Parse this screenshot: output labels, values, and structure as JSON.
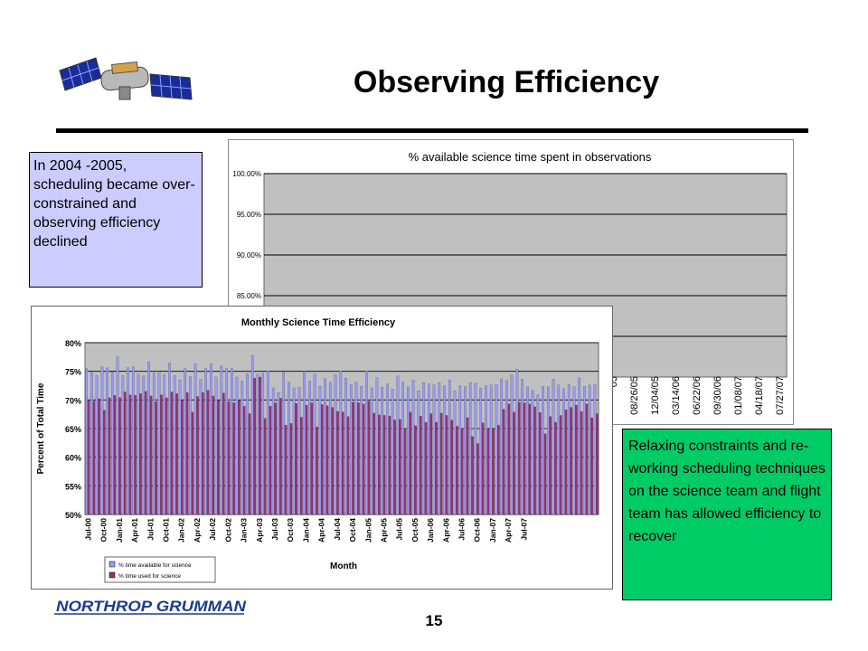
{
  "slide": {
    "title": "Observing Efficiency",
    "page_number": "15",
    "logo_text": "NORTHROP GRUMMAN"
  },
  "notes": {
    "left": "In 2004 -2005, scheduling became over-constrained and observing efficiency declined",
    "right": "Relaxing constraints and re-working scheduling techniques on the science team and flight team has allowed efficiency to recover"
  },
  "colors": {
    "note_left_bg": "#ccccff",
    "note_right_bg": "#00cc66",
    "plot_bg": "#c0c0c0",
    "scatter_point": "#1f1f99",
    "avail_bar": "#9999ff",
    "used_bar": "#993366"
  },
  "chart_data": [
    {
      "type": "scatter",
      "title": "% available science time spent in observations",
      "ylim": [
        75,
        100
      ],
      "y_ticks": [
        "100.00%",
        "95.00%",
        "90.00%",
        "85.00%"
      ],
      "x_ticks": [
        "05",
        "08/26/05",
        "12/04/05",
        "03/14/06",
        "06/22/06",
        "09/30/06",
        "01/08/07",
        "04/18/07",
        "07/27/07"
      ],
      "series": [
        {
          "name": "",
          "color": "#1f1f99"
        },
        {
          "name": "",
          "color": "#000000"
        }
      ],
      "grid": true
    },
    {
      "type": "bar",
      "title": "Monthly Science Time Efficiency",
      "xlabel": "Month",
      "ylabel": "Percent of Total Time",
      "ylim": [
        50,
        80
      ],
      "y_ticks": [
        "80%",
        "75%",
        "70%",
        "65%",
        "60%",
        "55%",
        "50%"
      ],
      "tick_labels": [
        "Jul-00",
        "Oct-00",
        "Jan-01",
        "Apr-01",
        "Jul-01",
        "Oct-01",
        "Jan-02",
        "Apr-02",
        "Jul-02",
        "Oct-02",
        "Jan-03",
        "Apr-03",
        "Jul-03",
        "Oct-03",
        "Jan-04",
        "Apr-04",
        "Jul-04",
        "Oct-04",
        "Jan-05",
        "Apr-05",
        "Jul-05",
        "Oct-05",
        "Jan-06",
        "Apr-06",
        "Jul-06",
        "Oct-06",
        "Jan-07",
        "Apr-07",
        "Jul-07"
      ],
      "series": [
        {
          "name": "% time available for science",
          "color": "#9999ff",
          "values": [
            75.5,
            74.8,
            74.3,
            75.8,
            75.6,
            74.9,
            77.5,
            74.3,
            75.6,
            75.8,
            74.5,
            74.2,
            76.7,
            74.7,
            74.7,
            74.4,
            76.5,
            74.3,
            73.5,
            75.5,
            74.1,
            76.3,
            73.6,
            75.5,
            76.3,
            74.0,
            75.9,
            75.5,
            75.5,
            74.0,
            73.3,
            74.6,
            77.8,
            74.5,
            74.7,
            75.1,
            72.1,
            71.3,
            74.8,
            73.1,
            72.1,
            72.2,
            75.0,
            73.3,
            74.5,
            72.4,
            73.7,
            73.1,
            74.4,
            75.1,
            73.8,
            72.7,
            73.1,
            72.4,
            75.1,
            72.1,
            73.9,
            72.2,
            72.8,
            71.9,
            74.2,
            73.1,
            72.3,
            73.5,
            71.6,
            73.0,
            72.8,
            72.6,
            73.0,
            72.5,
            73.5,
            71.6,
            72.5,
            72.3,
            73.0,
            72.9,
            72.1,
            72.5,
            72.6,
            72.7,
            73.7,
            73.4,
            74.4,
            75.4,
            73.6,
            72.3,
            71.7,
            70.9,
            72.4,
            72.3,
            73.6,
            72.6,
            72.0,
            72.7,
            72.3,
            73.9,
            72.4,
            72.6,
            72.7
          ]
        },
        {
          "name": "% time used for science",
          "color": "#993366",
          "values": [
            70.0,
            69.8,
            70.2,
            68.2,
            70.4,
            70.8,
            70.4,
            71.4,
            70.9,
            70.8,
            71.1,
            71.5,
            70.7,
            69.7,
            70.9,
            70.4,
            71.4,
            71.1,
            69.9,
            71.3,
            67.9,
            70.6,
            71.3,
            71.7,
            70.7,
            69.9,
            71.2,
            69.7,
            69.5,
            69.9,
            68.9,
            67.6,
            73.8,
            74.0,
            66.8,
            68.9,
            69.5,
            70.3,
            65.6,
            65.9,
            69.4,
            67.0,
            69.1,
            69.5,
            65.3,
            69.2,
            69.0,
            68.7,
            68.0,
            67.9,
            67.1,
            69.6,
            69.5,
            69.3,
            69.8,
            67.7,
            67.4,
            67.3,
            67.2,
            66.5,
            66.6,
            64.9,
            67.9,
            65.5,
            67.2,
            66.1,
            67.6,
            66.1,
            67.7,
            67.3,
            66.5,
            65.4,
            65.0,
            66.9,
            63.6,
            62.4,
            66.0,
            64.9,
            64.9,
            65.6,
            68.4,
            69.3,
            67.9,
            69.6,
            69.5,
            69.3,
            68.8,
            67.8,
            64.1,
            67.1,
            66.1,
            67.3,
            68.3,
            68.7,
            69.1,
            68.0,
            69.3,
            66.9,
            67.6
          ]
        }
      ],
      "legend_position": "bottom-left"
    }
  ]
}
